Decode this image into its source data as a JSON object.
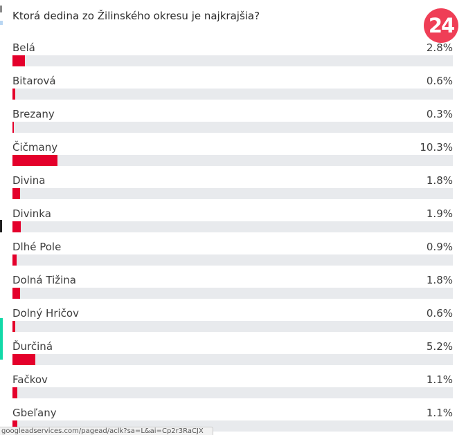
{
  "poll": {
    "question": "Ktorá dedina zo Žilinského okresu je najkrajšia?",
    "logo_text": "24",
    "accent_color": "#e4002b",
    "track_color": "#e8eaed",
    "logo_color": "#ef3e56",
    "options": [
      {
        "label": "Belá",
        "percent_text": "2.8%",
        "percent": 2.8
      },
      {
        "label": "Bitarová",
        "percent_text": "0.6%",
        "percent": 0.6
      },
      {
        "label": "Brezany",
        "percent_text": "0.3%",
        "percent": 0.3
      },
      {
        "label": "Čičmany",
        "percent_text": "10.3%",
        "percent": 10.3
      },
      {
        "label": "Divina",
        "percent_text": "1.8%",
        "percent": 1.8
      },
      {
        "label": "Divinka",
        "percent_text": "1.9%",
        "percent": 1.9
      },
      {
        "label": "Dlhé Pole",
        "percent_text": "0.9%",
        "percent": 0.9
      },
      {
        "label": "Dolná Tižina",
        "percent_text": "1.8%",
        "percent": 1.8
      },
      {
        "label": "Dolný Hričov",
        "percent_text": "0.6%",
        "percent": 0.6
      },
      {
        "label": "Ďurčiná",
        "percent_text": "5.2%",
        "percent": 5.2
      },
      {
        "label": "Fačkov",
        "percent_text": "1.1%",
        "percent": 1.1
      },
      {
        "label": "Gbeľany",
        "percent_text": "1.1%",
        "percent": 1.1
      }
    ]
  },
  "status_bar": {
    "url": "googleadservices.com/pagead/aclk?sa=L&ai=Cp2r3RaCJX"
  }
}
